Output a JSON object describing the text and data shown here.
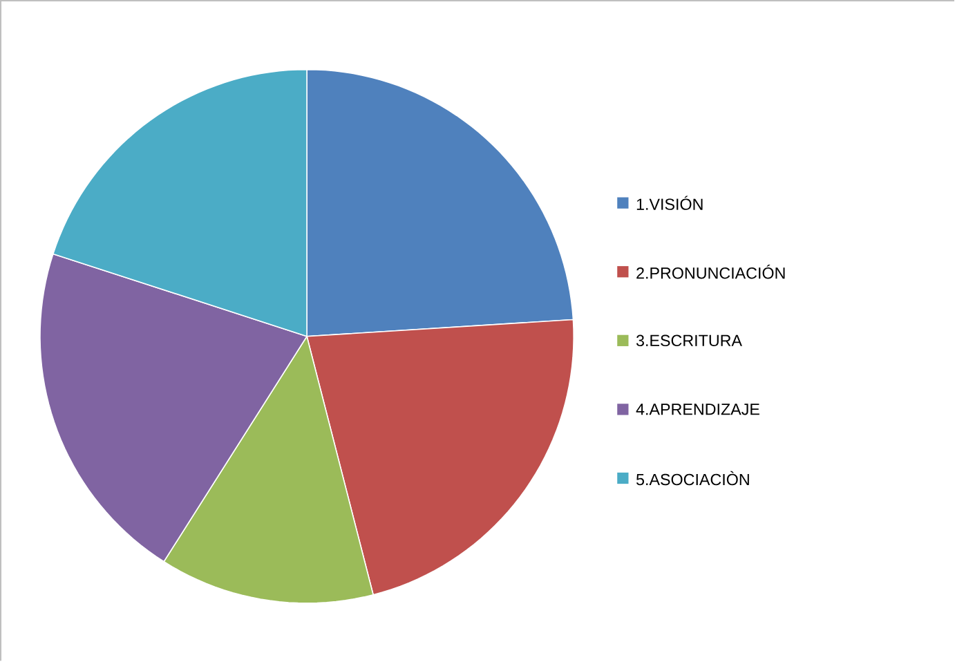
{
  "chart_data": {
    "type": "pie",
    "categories": [
      "1.VISIÓN",
      "2.PRONUNCIACIÓN",
      "3.ESCRITURA",
      "4.APRENDIZAJE",
      "5.ASOCIACIÒN"
    ],
    "values": [
      24,
      22,
      13,
      21,
      20
    ],
    "colors": [
      "#4f81bd",
      "#c0504d",
      "#9bbb59",
      "#8064a2",
      "#4bacc6"
    ],
    "legend": "right"
  }
}
